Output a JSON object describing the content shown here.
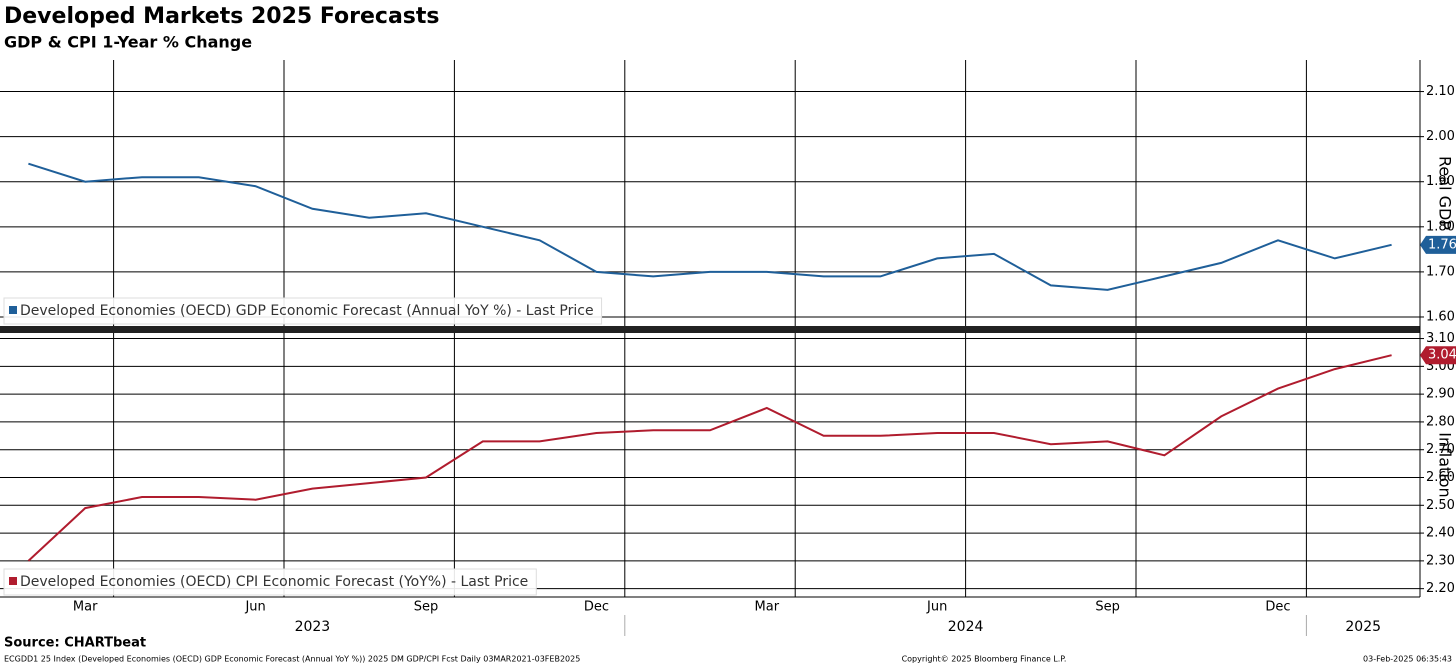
{
  "title": "Developed Markets 2025 Forecasts",
  "subtitle": "GDP & CPI 1-Year % Change",
  "source": "Source: CHARTbeat",
  "footer_left": "ECGDD1 25 Index (Developed Economies (OECD) GDP Economic Forecast (Annual YoY %)) 2025 DM GDP/CPI Fcst  Daily 03MAR2021-03FEB2025",
  "footer_center": "Copyright© 2025 Bloomberg Finance L.P.",
  "footer_right": "03-Feb-2025 06:35:43",
  "chart_data": [
    {
      "type": "line",
      "y_label": "Real GDP",
      "grid": true,
      "xlim": [
        "2023-02",
        "2025-02"
      ],
      "x": [
        "2023-02",
        "2023-03",
        "2023-04",
        "2023-05",
        "2023-06",
        "2023-07",
        "2023-08",
        "2023-09",
        "2023-10",
        "2023-11",
        "2023-12",
        "2024-01",
        "2024-02",
        "2024-03",
        "2024-04",
        "2024-05",
        "2024-06",
        "2024-07",
        "2024-08",
        "2024-09",
        "2024-10",
        "2024-11",
        "2024-12",
        "2025-01",
        "2025-02"
      ],
      "series": [
        {
          "name": "Developed Economies (OECD) GDP Economic Forecast (Annual YoY %) - Last Price",
          "color": "#1f5f99",
          "values": [
            1.94,
            1.9,
            1.91,
            1.91,
            1.89,
            1.84,
            1.82,
            1.83,
            1.8,
            1.77,
            1.7,
            1.69,
            1.7,
            1.7,
            1.69,
            1.69,
            1.73,
            1.74,
            1.67,
            1.66,
            1.69,
            1.72,
            1.77,
            1.73,
            1.76
          ]
        }
      ],
      "ylim": [
        1.58,
        2.17
      ],
      "yticks": [
        {
          "value": 1.6,
          "label": "1.60"
        },
        {
          "value": 1.7,
          "label": "1.70"
        },
        {
          "value": 1.8,
          "label": "1.80"
        },
        {
          "value": 1.9,
          "label": "1.90"
        },
        {
          "value": 2.0,
          "label": "2.00"
        },
        {
          "value": 2.1,
          "label": "2.10"
        }
      ]
    },
    {
      "type": "line",
      "y_label": "Inflation",
      "grid": true,
      "xlim": [
        "2023-02",
        "2025-02"
      ],
      "x": [
        "2023-02",
        "2023-03",
        "2023-04",
        "2023-05",
        "2023-06",
        "2023-07",
        "2023-08",
        "2023-09",
        "2023-10",
        "2023-11",
        "2023-12",
        "2024-01",
        "2024-02",
        "2024-03",
        "2024-04",
        "2024-05",
        "2024-06",
        "2024-07",
        "2024-08",
        "2024-09",
        "2024-10",
        "2024-11",
        "2024-12",
        "2025-01",
        "2025-02"
      ],
      "series": [
        {
          "name": "Developed Economies (OECD) CPI Economic Forecast (YoY%) - Last Price",
          "color": "#b01c2e",
          "values": [
            2.3,
            2.49,
            2.53,
            2.53,
            2.52,
            2.56,
            2.58,
            2.6,
            2.73,
            2.73,
            2.76,
            2.77,
            2.77,
            2.85,
            2.75,
            2.75,
            2.76,
            2.76,
            2.72,
            2.73,
            2.68,
            2.82,
            2.92,
            2.99,
            3.04
          ]
        }
      ],
      "ylim": [
        2.17,
        3.12
      ],
      "yticks": [
        {
          "value": 2.2,
          "label": "2.20"
        },
        {
          "value": 2.3,
          "label": "2.30"
        },
        {
          "value": 2.4,
          "label": "2.40"
        },
        {
          "value": 2.5,
          "label": "2.50"
        },
        {
          "value": 2.6,
          "label": "2.60"
        },
        {
          "value": 2.7,
          "label": "2.70"
        },
        {
          "value": 2.8,
          "label": "2.80"
        },
        {
          "value": 2.9,
          "label": "2.90"
        },
        {
          "value": 3.0,
          "label": "3.00"
        },
        {
          "value": 3.1,
          "label": "3.10"
        }
      ],
      "xticks": [
        {
          "value": "2023-03",
          "label": "Mar"
        },
        {
          "value": "2023-06",
          "label": "Jun"
        },
        {
          "value": "2023-09",
          "label": "Sep"
        },
        {
          "value": "2023-12",
          "label": "Dec"
        },
        {
          "value": "2024-03",
          "label": "Mar"
        },
        {
          "value": "2024-06",
          "label": "Jun"
        },
        {
          "value": "2024-09",
          "label": "Sep"
        },
        {
          "value": "2024-12",
          "label": "Dec"
        }
      ],
      "year_labels": [
        "2023",
        "2024",
        "2025"
      ]
    }
  ]
}
